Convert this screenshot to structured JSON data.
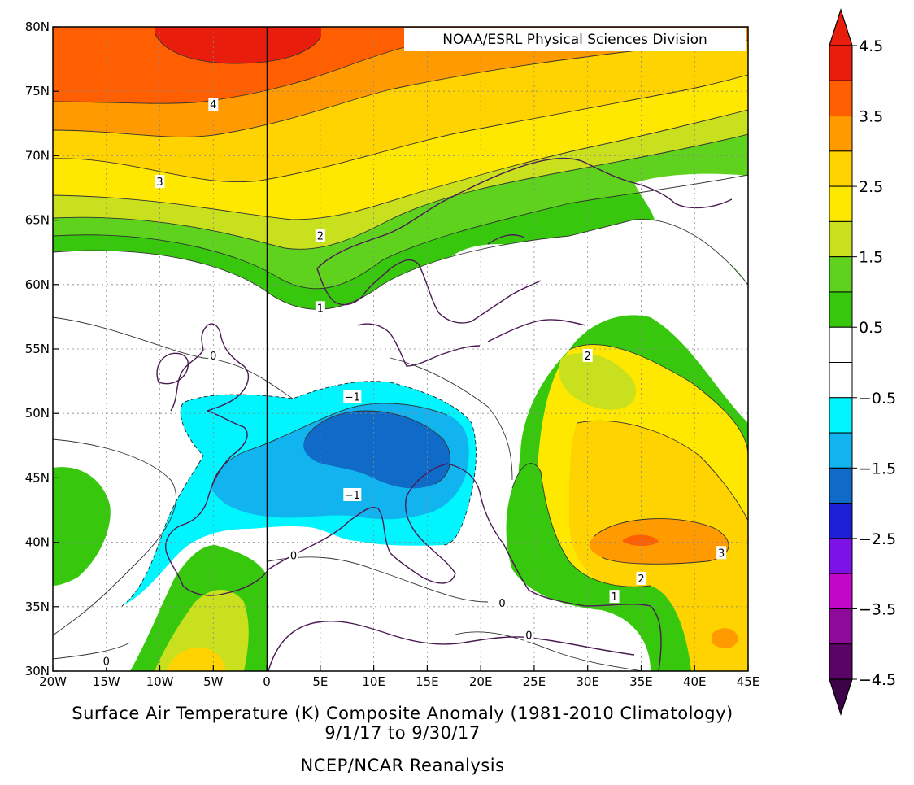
{
  "credit": "NOAA/ESRL Physical Sciences Division",
  "title": "Surface Air Temperature (K) Composite Anomaly (1981-2010 Climatology)",
  "date_range": "9/1/17  to 9/30/17",
  "source": "NCEP/NCAR Reanalysis",
  "map": {
    "lon_range": [
      -20,
      45
    ],
    "lat_range": [
      30,
      80
    ],
    "x_ticks": [
      "20W",
      "15W",
      "10W",
      "5W",
      "0",
      "5E",
      "10E",
      "15E",
      "20E",
      "25E",
      "30E",
      "35E",
      "40E",
      "45E"
    ],
    "y_ticks": [
      "30N",
      "35N",
      "40N",
      "45N",
      "50N",
      "55N",
      "60N",
      "65N",
      "70N",
      "75N",
      "80N"
    ]
  },
  "colorbar": {
    "labels": [
      "4.5",
      "3.5",
      "2.5",
      "1.5",
      "0.5",
      "−0.5",
      "−1.5",
      "−2.5",
      "−3.5",
      "−4.5"
    ],
    "colors": [
      "#e91d0b",
      "#ff5f00",
      "#ff9a00",
      "#ffd300",
      "#ffe800",
      "#c8e01e",
      "#5ed21c",
      "#37c80e",
      "#ffffff",
      "#ffffff",
      "#00f5ff",
      "#12b4ef",
      "#0f6ac8",
      "#1c20d6",
      "#7d12e6",
      "#c307c8",
      "#8d0b98",
      "#5a0565"
    ],
    "top_arrow_color": "#e91d0b",
    "bottom_arrow_color": "#3c0349"
  },
  "contour_labels": [
    {
      "text": "4",
      "lon": -5,
      "lat": 74
    },
    {
      "text": "3",
      "lon": -10,
      "lat": 68
    },
    {
      "text": "2",
      "lon": 5,
      "lat": 63.8
    },
    {
      "text": "1",
      "lon": 5,
      "lat": 58.2
    },
    {
      "text": "0",
      "lon": -5,
      "lat": 54.5
    },
    {
      "text": "2",
      "lon": 30,
      "lat": 54.5
    },
    {
      "text": "−1",
      "lon": 8,
      "lat": 51.3
    },
    {
      "text": "−1",
      "lon": 8,
      "lat": 43.7
    },
    {
      "text": "0",
      "lon": 2.5,
      "lat": 39
    },
    {
      "text": "0",
      "lon": -15,
      "lat": 30.8
    },
    {
      "text": "0",
      "lon": 22,
      "lat": 35.3
    },
    {
      "text": "0",
      "lon": 24.5,
      "lat": 32.8
    },
    {
      "text": "3",
      "lon": 42.5,
      "lat": 39.2
    },
    {
      "text": "2",
      "lon": 35,
      "lat": 37.2
    },
    {
      "text": "1",
      "lon": 32.5,
      "lat": 35.8
    }
  ]
}
